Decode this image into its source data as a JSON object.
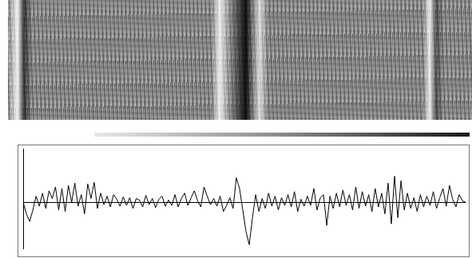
{
  "chart_data": {
    "type": "line",
    "color": "#000000",
    "grid": true,
    "tick_labels": false,
    "xlim": [
      0,
      137
    ],
    "ylim": [
      -60,
      70
    ],
    "yticks": [
      0
    ],
    "x": [
      0,
      1,
      2,
      3,
      4,
      5,
      6,
      7,
      8,
      9,
      10,
      11,
      12,
      13,
      14,
      15,
      16,
      17,
      18,
      19,
      20,
      21,
      22,
      23,
      24,
      25,
      26,
      27,
      28,
      29,
      30,
      31,
      32,
      33,
      34,
      35,
      36,
      37,
      38,
      39,
      40,
      41,
      42,
      43,
      44,
      45,
      46,
      47,
      48,
      49,
      50,
      51,
      52,
      53,
      54,
      55,
      56,
      57,
      58,
      59,
      60,
      61,
      62,
      63,
      64,
      65,
      66,
      67,
      68,
      69,
      70,
      71,
      72,
      73,
      74,
      75,
      76,
      77,
      78,
      79,
      80,
      81,
      82,
      83,
      84,
      85,
      86,
      87,
      88,
      89,
      90,
      91,
      92,
      93,
      94,
      95,
      96,
      97,
      98,
      99,
      100,
      101,
      102,
      103,
      104,
      105,
      106,
      107,
      108,
      109,
      110,
      111,
      112,
      113,
      114,
      115,
      116,
      117,
      118,
      119,
      120,
      121,
      122,
      123,
      124,
      125,
      126,
      127,
      128,
      129,
      130,
      131,
      132,
      133,
      134,
      135,
      136,
      137
    ],
    "values": [
      0,
      -15,
      -25,
      -10,
      8,
      -5,
      12,
      -8,
      15,
      5,
      20,
      -10,
      18,
      -12,
      22,
      0,
      25,
      -5,
      10,
      -15,
      24,
      5,
      26,
      -8,
      12,
      -3,
      8,
      -6,
      10,
      4,
      -5,
      7,
      -4,
      6,
      -8,
      5,
      3,
      -6,
      9,
      -3,
      5,
      -7,
      4,
      8,
      -5,
      3,
      -4,
      10,
      -6,
      5,
      12,
      -4,
      6,
      15,
      2,
      -6,
      20,
      8,
      -3,
      5,
      -5,
      8,
      -12,
      -4,
      6,
      -8,
      32,
      18,
      -10,
      -38,
      -55,
      -20,
      10,
      -12,
      5,
      -8,
      12,
      -5,
      8,
      -10,
      6,
      -4,
      10,
      -6,
      14,
      -12,
      4,
      -5,
      8,
      -4,
      18,
      -10,
      6,
      10,
      -30,
      8,
      -8,
      12,
      -6,
      16,
      -4,
      10,
      -10,
      20,
      -8,
      14,
      -5,
      10,
      -12,
      18,
      -6,
      12,
      -15,
      25,
      -28,
      34,
      -20,
      28,
      -10,
      12,
      -8,
      6,
      -12,
      10,
      -6,
      8,
      -4,
      14,
      -8,
      6,
      18,
      -5,
      22,
      4,
      -6,
      10,
      2,
      0
    ]
  }
}
